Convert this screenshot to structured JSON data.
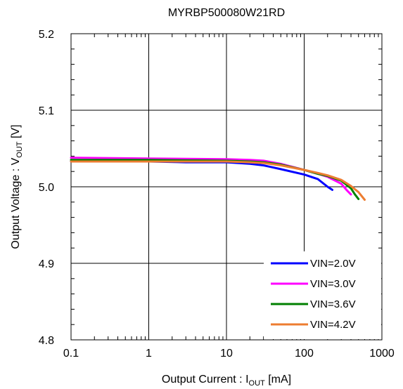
{
  "chart_data": {
    "type": "line",
    "title": "MYRBP500080W21RD",
    "xlabel": {
      "main": "Output  Current : I",
      "sub": "OUT",
      "tail": "  [mA]"
    },
    "ylabel": {
      "main": "Output  Voltage : V",
      "sub": "OUT",
      "tail": "  [V]"
    },
    "x_scale": "log",
    "xlim": [
      0.1,
      1000
    ],
    "ylim": [
      4.8,
      5.2
    ],
    "x_ticks": [
      {
        "value": 0.1,
        "label": "0.1"
      },
      {
        "value": 1,
        "label": "1"
      },
      {
        "value": 10,
        "label": "10"
      },
      {
        "value": 100,
        "label": "100"
      },
      {
        "value": 1000,
        "label": "1000"
      }
    ],
    "y_ticks": [
      {
        "value": 4.8,
        "label": "4.8"
      },
      {
        "value": 4.9,
        "label": "4.9"
      },
      {
        "value": 5.0,
        "label": "5.0"
      },
      {
        "value": 5.1,
        "label": "5.1"
      },
      {
        "value": 5.2,
        "label": "5.2"
      }
    ],
    "grid": true,
    "legend_position": "bottom-right",
    "series": [
      {
        "name": "VIN=2.0V",
        "color": "#0000ff",
        "x": [
          0.1,
          1,
          3,
          10,
          20,
          30,
          50,
          100,
          150,
          200,
          230
        ],
        "y": [
          5.033,
          5.033,
          5.032,
          5.032,
          5.03,
          5.028,
          5.023,
          5.016,
          5.01,
          5.0,
          4.996
        ]
      },
      {
        "name": "VIN=3.0V",
        "color": "#ff00ff",
        "x": [
          0.1,
          1,
          10,
          20,
          30,
          50,
          100,
          150,
          200,
          300,
          350,
          400
        ],
        "y": [
          5.038,
          5.037,
          5.036,
          5.035,
          5.034,
          5.03,
          5.022,
          5.017,
          5.013,
          5.004,
          4.996,
          4.99
        ]
      },
      {
        "name": "VIN=3.6V",
        "color": "#008000",
        "x": [
          0.1,
          1,
          10,
          20,
          30,
          50,
          100,
          150,
          200,
          300,
          400,
          450,
          500
        ],
        "y": [
          5.035,
          5.035,
          5.034,
          5.033,
          5.032,
          5.029,
          5.022,
          5.017,
          5.014,
          5.008,
          4.998,
          4.99,
          4.984
        ]
      },
      {
        "name": "VIN=4.2V",
        "color": "#ed7d31",
        "x": [
          0.1,
          1,
          10,
          20,
          30,
          50,
          100,
          150,
          200,
          300,
          400,
          500,
          600
        ],
        "y": [
          5.033,
          5.033,
          5.033,
          5.032,
          5.031,
          5.028,
          5.022,
          5.018,
          5.015,
          5.009,
          5.001,
          4.993,
          4.983
        ]
      }
    ]
  }
}
